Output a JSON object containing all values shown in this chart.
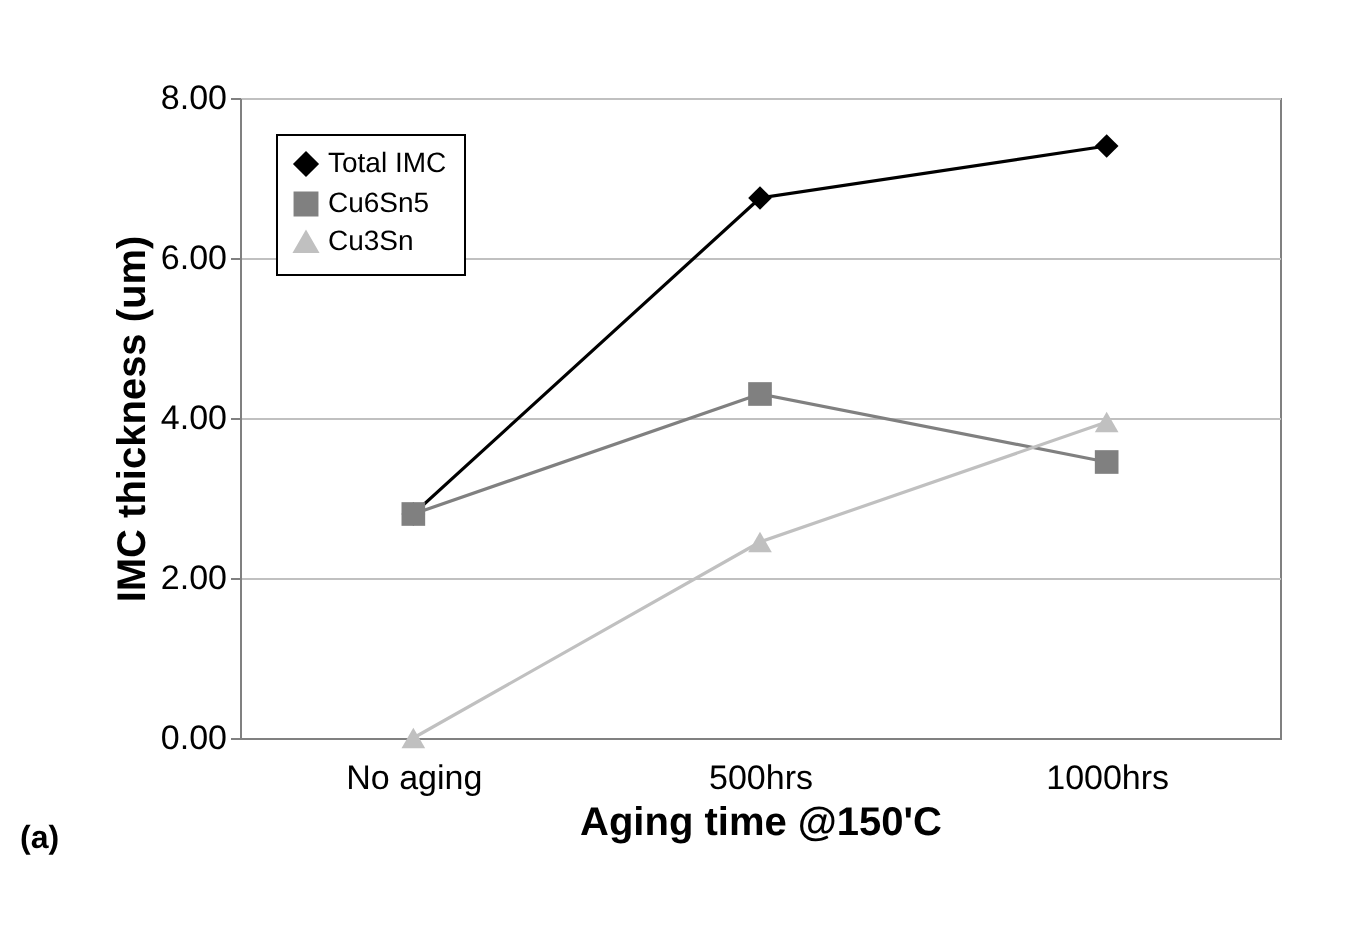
{
  "chart_data": {
    "type": "line",
    "xlabel": "Aging time @150'C",
    "ylabel": "IMC thickness (um)",
    "categories": [
      "No aging",
      "500hrs",
      "1000hrs"
    ],
    "series": [
      {
        "name": "Total IMC",
        "color": "#000000",
        "marker": "diamond",
        "values": [
          2.8,
          6.75,
          7.4
        ]
      },
      {
        "name": "Cu6Sn5",
        "color": "#808080",
        "marker": "square",
        "values": [
          2.8,
          4.3,
          3.45
        ]
      },
      {
        "name": "Cu3Sn",
        "color": "#c0c0c0",
        "marker": "triangle",
        "values": [
          0,
          2.45,
          3.95
        ]
      }
    ],
    "ylim": [
      0,
      8
    ],
    "yticks": [
      {
        "value": 0,
        "label": "0.00"
      },
      {
        "value": 2,
        "label": "2.00"
      },
      {
        "value": 4,
        "label": "4.00"
      },
      {
        "value": 6,
        "label": "6.00"
      },
      {
        "value": 8,
        "label": "8.00"
      }
    ],
    "grid": "y",
    "legend": "top left",
    "annotations": [
      "(a)"
    ]
  }
}
